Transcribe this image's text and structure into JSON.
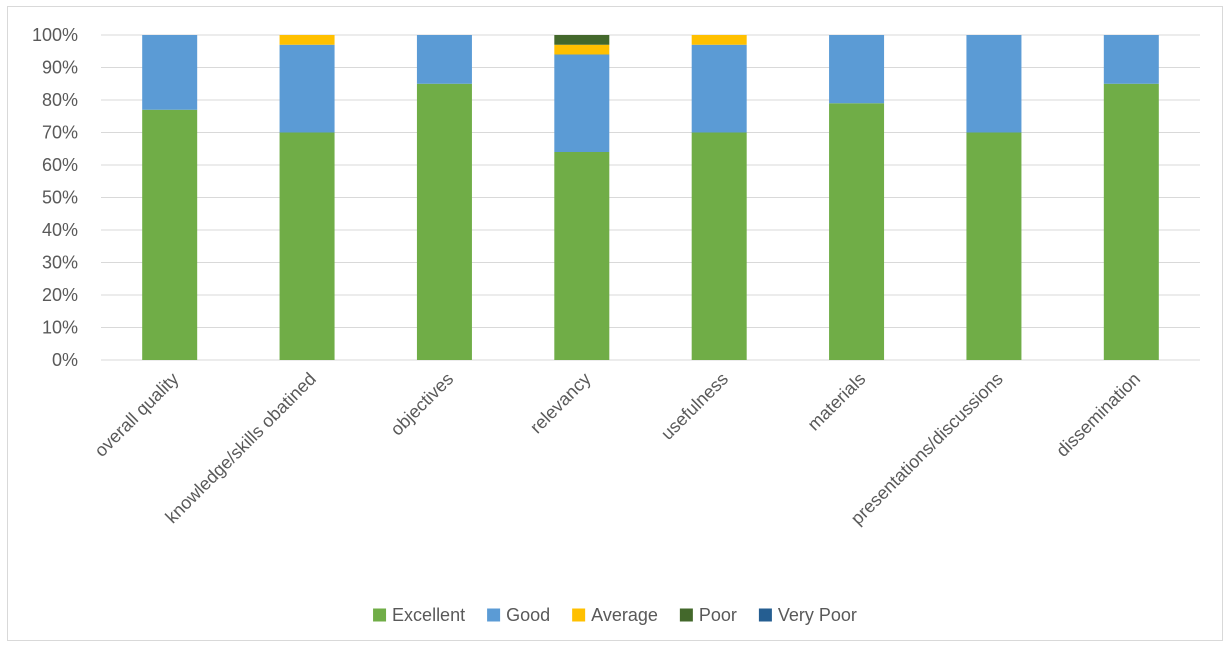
{
  "chart_data": {
    "type": "bar",
    "stacked": true,
    "percent_stacked": true,
    "title": "",
    "xlabel": "",
    "ylabel": "",
    "ylim": [
      0,
      100
    ],
    "y_ticks": [
      "0%",
      "10%",
      "20%",
      "30%",
      "40%",
      "50%",
      "60%",
      "70%",
      "80%",
      "90%",
      "100%"
    ],
    "grid": true,
    "legend_position": "bottom",
    "categories": [
      "overall quality",
      "knowledge/skills obatined",
      "objectives",
      "relevancy",
      "usefulness",
      "materials",
      "presentations/discussions",
      "dissemination"
    ],
    "series": [
      {
        "name": "Excellent",
        "color": "#70ad47",
        "values": [
          77,
          70,
          85,
          64,
          70,
          79,
          70,
          85
        ]
      },
      {
        "name": "Good",
        "color": "#5b9bd5",
        "values": [
          23,
          27,
          15,
          30,
          27,
          21,
          30,
          15
        ]
      },
      {
        "name": "Average",
        "color": "#ffc000",
        "values": [
          0,
          3,
          0,
          3,
          3,
          0,
          0,
          0
        ]
      },
      {
        "name": "Poor",
        "color": "#43682b",
        "values": [
          0,
          0,
          0,
          3,
          0,
          0,
          0,
          0
        ]
      },
      {
        "name": "Very Poor",
        "color": "#255e91",
        "values": [
          0,
          0,
          0,
          0,
          0,
          0,
          0,
          0
        ]
      }
    ]
  }
}
